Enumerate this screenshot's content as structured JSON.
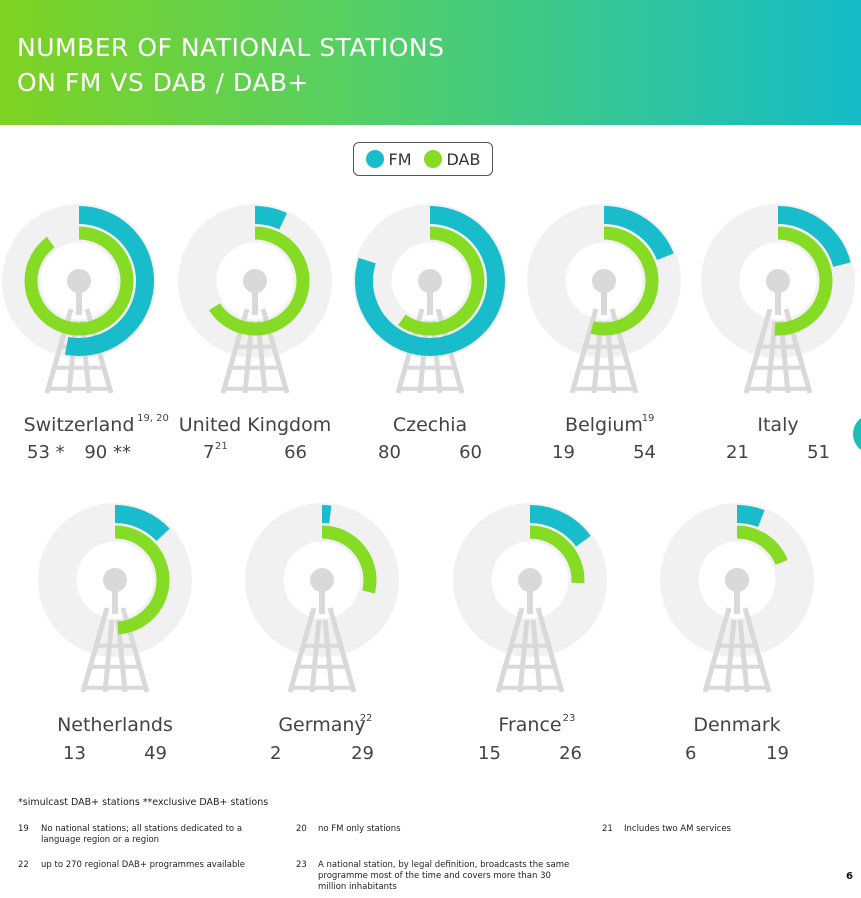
{
  "header": {
    "title_line1": "NUMBER OF NATIONAL STATIONS",
    "title_line2": "ON FM VS DAB / DAB+"
  },
  "legend": {
    "fm_label": "FM",
    "dab_label": "DAB"
  },
  "colors": {
    "fm": "#19bccb",
    "dab": "#86dc24",
    "track": "#f1f1f1",
    "tower": "#d9d9d9"
  },
  "chart_data": {
    "type": "radial-bar",
    "max_value": 100,
    "series_names": [
      "FM",
      "DAB"
    ],
    "countries": [
      {
        "name": "Switzerland",
        "sup": "19, 20",
        "fm_label": "53 *",
        "fm_sup": "",
        "dab_label": "90 **",
        "fm": 53,
        "dab": 90
      },
      {
        "name": "United Kingdom",
        "sup": "",
        "fm_label": "7",
        "fm_sup": "21",
        "dab_label": "66",
        "fm": 7,
        "dab": 66
      },
      {
        "name": "Czechia",
        "sup": "",
        "fm_label": "80",
        "fm_sup": "",
        "dab_label": "60",
        "fm": 80,
        "dab": 60
      },
      {
        "name": "Belgium",
        "sup": "19",
        "fm_label": "19",
        "fm_sup": "",
        "dab_label": "54",
        "fm": 19,
        "dab": 54
      },
      {
        "name": "Italy",
        "sup": "",
        "fm_label": "21",
        "fm_sup": "",
        "dab_label": "51",
        "fm": 21,
        "dab": 51
      },
      {
        "name": "Netherlands",
        "sup": "",
        "fm_label": "13",
        "fm_sup": "",
        "dab_label": "49",
        "fm": 13,
        "dab": 49
      },
      {
        "name": "Germany",
        "sup": "22",
        "fm_label": "2",
        "fm_sup": "",
        "dab_label": "29",
        "fm": 2,
        "dab": 29
      },
      {
        "name": "France",
        "sup": "23",
        "fm_label": "15",
        "fm_sup": "",
        "dab_label": "26",
        "fm": 15,
        "dab": 26
      },
      {
        "name": "Denmark",
        "sup": "",
        "fm_label": "6",
        "fm_sup": "",
        "dab_label": "19",
        "fm": 6,
        "dab": 19
      }
    ]
  },
  "footnotes": {
    "asterisks": "*simulcast DAB+ stations  **exclusive DAB+ stations",
    "items": [
      {
        "num": "19",
        "text": "No national stations; all stations dedicated to a language region or a region"
      },
      {
        "num": "20",
        "text": "no FM only stations"
      },
      {
        "num": "21",
        "text": "Includes two AM services"
      },
      {
        "num": "22",
        "text": "up to 270 regional DAB+ programmes available"
      },
      {
        "num": "23",
        "text": "A national station, by legal definition, broadcasts the same programme most of the time and covers more than 30 million inhabitants"
      }
    ]
  },
  "page_number": "6"
}
